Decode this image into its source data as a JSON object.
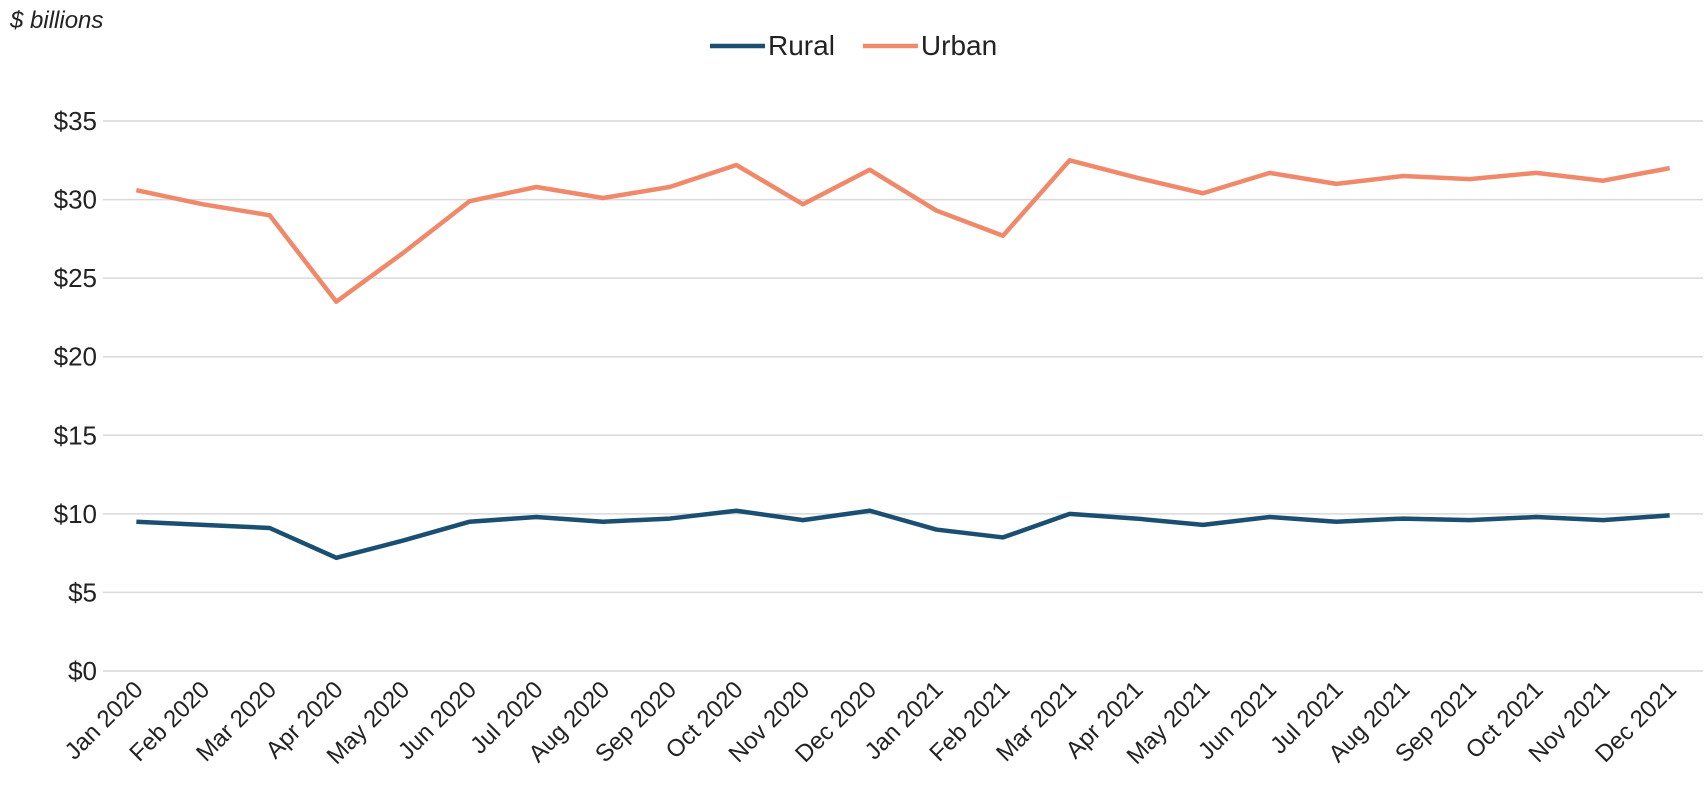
{
  "chart_data": {
    "type": "line",
    "y_label": "$ billions",
    "categories": [
      "Jan 2020",
      "Feb 2020",
      "Mar 2020",
      "Apr 2020",
      "May 2020",
      "Jun 2020",
      "Jul 2020",
      "Aug 2020",
      "Sep 2020",
      "Oct 2020",
      "Nov 2020",
      "Dec 2020",
      "Jan 2021",
      "Feb 2021",
      "Mar 2021",
      "Apr 2021",
      "May 2021",
      "Jun 2021",
      "Jul 2021",
      "Aug 2021",
      "Sep 2021",
      "Oct 2021",
      "Nov 2021",
      "Dec 2021"
    ],
    "series": [
      {
        "name": "Rural",
        "color": "#1b4f72",
        "values": [
          9.5,
          9.3,
          9.1,
          7.2,
          8.3,
          9.5,
          9.8,
          9.5,
          9.7,
          10.2,
          9.6,
          10.2,
          9.0,
          8.5,
          10.0,
          9.7,
          9.3,
          9.8,
          9.5,
          9.7,
          9.6,
          9.8,
          9.6,
          9.9
        ]
      },
      {
        "name": "Urban",
        "color": "#f0896a",
        "values": [
          30.6,
          29.7,
          29.0,
          23.5,
          26.6,
          29.9,
          30.8,
          30.1,
          30.8,
          32.2,
          29.7,
          31.9,
          29.3,
          27.7,
          32.5,
          31.4,
          30.4,
          31.7,
          31.0,
          31.5,
          31.3,
          31.7,
          31.2,
          32.0
        ]
      }
    ],
    "ylim": [
      0,
      35
    ],
    "yticks": [
      {
        "value": 0,
        "label": "$0"
      },
      {
        "value": 5,
        "label": "$5"
      },
      {
        "value": 10,
        "label": "$10"
      },
      {
        "value": 15,
        "label": "$15"
      },
      {
        "value": 20,
        "label": "$20"
      },
      {
        "value": 25,
        "label": "$25"
      },
      {
        "value": 30,
        "label": "$30"
      },
      {
        "value": 35,
        "label": "$35"
      }
    ],
    "grid": true,
    "legend": "top"
  }
}
